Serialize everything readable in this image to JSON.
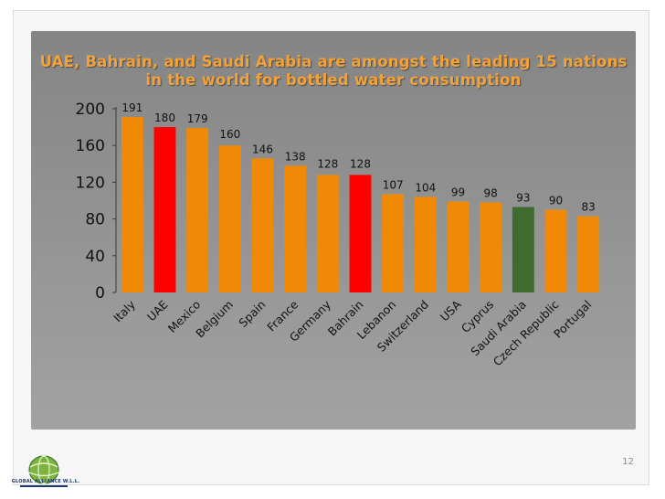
{
  "slide": {
    "title": "UAE, Bahrain, and Saudi Arabia are amongst the leading 15 nations in the world for bottled water consumption",
    "page_number": "12",
    "logo_text": "GLOBAL ALLIANCE W.L.L."
  },
  "colors": {
    "default_bar": "#f08a06",
    "highlight_red": "#ff0000",
    "highlight_green": "#3f6b2e",
    "title": "#f2a23a",
    "panel": "#8e8e8e"
  },
  "icons": {
    "logo": "globe-logo-icon"
  },
  "chart_data": {
    "type": "bar",
    "title": "UAE, Bahrain, and Saudi Arabia are amongst the leading 15 nations in the world for bottled water consumption",
    "xlabel": "",
    "ylabel": "",
    "ylim": [
      0,
      200
    ],
    "yticks": [
      0,
      40,
      80,
      120,
      160,
      200
    ],
    "categories": [
      "Italy",
      "UAE",
      "Mexico",
      "Belgium",
      "Spain",
      "France",
      "Germany",
      "Bahrain",
      "Lebanon",
      "Switzerland",
      "USA",
      "Cyprus",
      "Saudi Arabia",
      "Czech Republic",
      "Portugal"
    ],
    "values": [
      191,
      180,
      179,
      160,
      146,
      138,
      128,
      128,
      107,
      104,
      99,
      98,
      93,
      90,
      83
    ],
    "bar_colors": [
      "#f08a06",
      "#ff0000",
      "#f08a06",
      "#f08a06",
      "#f08a06",
      "#f08a06",
      "#f08a06",
      "#ff0000",
      "#f08a06",
      "#f08a06",
      "#f08a06",
      "#f08a06",
      "#3f6b2e",
      "#f08a06",
      "#f08a06"
    ],
    "grid": false,
    "legend": "none",
    "data_labels": true
  }
}
